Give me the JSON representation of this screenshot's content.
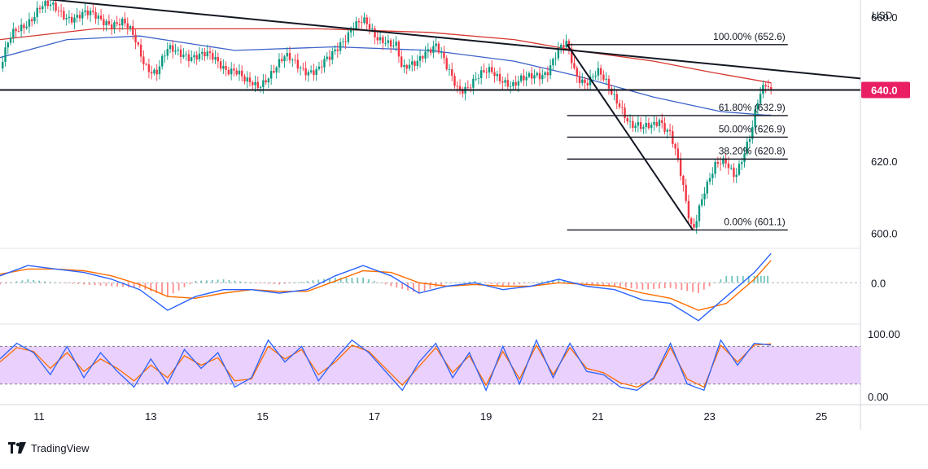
{
  "currency_label": "USD",
  "brand": "TradingView",
  "colors": {
    "price_up": "#089981",
    "price_down": "#f23645",
    "ma_red": "#d6362f",
    "ma_blue": "#3d64c9",
    "macd_line": "#2962ff",
    "signal_line": "#ff6d00",
    "stoch_k": "#2962ff",
    "stoch_d": "#ff6d00",
    "stoch_band": "#e6c8fb",
    "marker": "#e91e63",
    "axis_text": "#131722"
  },
  "chart_data": [
    {
      "type": "line",
      "title": "",
      "yaxis_ticks": [
        "600.0",
        "620.0",
        "640.0",
        "660.0"
      ],
      "ylim": [
        596,
        665
      ],
      "x_tick_labels": [
        "11",
        "13",
        "15",
        "17",
        "19",
        "21",
        "23",
        "25"
      ],
      "x_ticks": [
        11,
        13,
        15,
        17,
        19,
        21,
        23,
        25
      ],
      "xlim": [
        10.3,
        25.7
      ],
      "price_marker": {
        "value": 640.0,
        "label": "640.0"
      },
      "price_path": [
        [
          10.3,
          646
        ],
        [
          10.5,
          654
        ],
        [
          10.8,
          660
        ],
        [
          11.0,
          663
        ],
        [
          11.3,
          662
        ],
        [
          11.6,
          661
        ],
        [
          11.9,
          660
        ],
        [
          12.2,
          660
        ],
        [
          12.5,
          658
        ],
        [
          12.7,
          654
        ],
        [
          12.9,
          648
        ],
        [
          13.1,
          645
        ],
        [
          13.3,
          650
        ],
        [
          13.6,
          651
        ],
        [
          13.9,
          649
        ],
        [
          14.2,
          648
        ],
        [
          14.5,
          646
        ],
        [
          14.7,
          641
        ],
        [
          14.9,
          641
        ],
        [
          15.1,
          645
        ],
        [
          15.4,
          648
        ],
        [
          15.7,
          647
        ],
        [
          16.0,
          645
        ],
        [
          16.2,
          648
        ],
        [
          16.4,
          654
        ],
        [
          16.6,
          658
        ],
        [
          16.8,
          658
        ],
        [
          17.0,
          655
        ],
        [
          17.2,
          655
        ],
        [
          17.4,
          652
        ],
        [
          17.5,
          644
        ],
        [
          17.7,
          647
        ],
        [
          17.9,
          652
        ],
        [
          18.1,
          652
        ],
        [
          18.3,
          645
        ],
        [
          18.5,
          641
        ],
        [
          18.7,
          642
        ],
        [
          18.9,
          643
        ],
        [
          19.1,
          645
        ],
        [
          19.3,
          644
        ],
        [
          19.5,
          641
        ],
        [
          19.7,
          642
        ],
        [
          19.9,
          645
        ],
        [
          20.1,
          646
        ],
        [
          20.3,
          650
        ],
        [
          20.45,
          652
        ],
        [
          20.6,
          645
        ],
        [
          20.8,
          643
        ],
        [
          21.0,
          644
        ],
        [
          21.2,
          640
        ],
        [
          21.4,
          637
        ],
        [
          21.6,
          630
        ],
        [
          21.8,
          628
        ],
        [
          22.0,
          631
        ],
        [
          22.1,
          633
        ],
        [
          22.3,
          628
        ],
        [
          22.45,
          618
        ],
        [
          22.6,
          606
        ],
        [
          22.7,
          601
        ],
        [
          22.8,
          608
        ],
        [
          22.9,
          613
        ],
        [
          23.1,
          618
        ],
        [
          23.3,
          619
        ],
        [
          23.45,
          617
        ],
        [
          23.6,
          623
        ],
        [
          23.75,
          628
        ],
        [
          23.85,
          635
        ],
        [
          24.0,
          641
        ],
        [
          24.1,
          640
        ]
      ],
      "series": [
        {
          "name": "",
          "x": [
            10.3,
            11.5,
            12.8,
            14.5,
            16.3,
            18.0,
            19.5,
            20.6,
            22.0,
            23.2,
            24.0,
            24.1
          ],
          "values": [
            649,
            654,
            655,
            651,
            652,
            651,
            648,
            644,
            638,
            634,
            633,
            633
          ]
        },
        {
          "name": "",
          "x": [
            10.3,
            12.0,
            14.0,
            16.0,
            18.0,
            19.5,
            20.6,
            22.0,
            23.0,
            24.1
          ],
          "values": [
            654,
            657,
            657,
            657,
            656,
            654,
            651,
            648,
            645,
            642
          ]
        }
      ],
      "trendlines": [
        {
          "x": [
            10.3,
            25.7
          ],
          "y": [
            666.5,
            643.2
          ]
        },
        {
          "x": [
            20.45,
            22.7
          ],
          "y": [
            652.6,
            601.1
          ]
        },
        {
          "x": [
            10.3,
            25.7
          ],
          "y": [
            640,
            640
          ]
        }
      ],
      "fibonacci": {
        "x_start": 20.45,
        "x_end": 24.4,
        "levels": [
          {
            "label": "100.00% (652.6)",
            "value": 652.6
          },
          {
            "label": "61.80% (632.9)",
            "value": 632.9
          },
          {
            "label": "50.00% (626.9)",
            "value": 626.9
          },
          {
            "label": "38.20% (620.8)",
            "value": 620.8
          },
          {
            "label": "0.00% (601.1)",
            "value": 601.1
          }
        ]
      }
    },
    {
      "type": "line",
      "title": "",
      "yaxis_ticks": [
        "0.0"
      ],
      "ylim": [
        -1.2,
        1.0
      ],
      "x": [
        10.3,
        10.8,
        11.3,
        11.8,
        12.3,
        12.8,
        13.3,
        13.8,
        14.3,
        14.8,
        15.3,
        15.8,
        16.3,
        16.8,
        17.3,
        17.8,
        18.3,
        18.8,
        19.3,
        19.8,
        20.3,
        20.8,
        21.3,
        21.8,
        22.3,
        22.8,
        23.3,
        23.8,
        24.1
      ],
      "series": [
        {
          "name": "",
          "values": [
            0.2,
            0.5,
            0.4,
            0.3,
            0.1,
            -0.2,
            -0.8,
            -0.4,
            -0.2,
            -0.2,
            -0.3,
            -0.2,
            0.2,
            0.5,
            0.2,
            -0.3,
            -0.1,
            0.0,
            -0.2,
            -0.1,
            0.1,
            -0.1,
            -0.2,
            -0.5,
            -0.6,
            -1.1,
            -0.4,
            0.3,
            0.85
          ]
        },
        {
          "name": "",
          "values": [
            0.25,
            0.4,
            0.4,
            0.35,
            0.2,
            -0.05,
            -0.4,
            -0.45,
            -0.3,
            -0.2,
            -0.25,
            -0.25,
            0.05,
            0.35,
            0.3,
            0.0,
            -0.1,
            -0.05,
            -0.1,
            -0.1,
            0.0,
            -0.05,
            -0.1,
            -0.3,
            -0.45,
            -0.8,
            -0.6,
            0.1,
            0.65
          ]
        }
      ]
    },
    {
      "type": "line",
      "title": "",
      "yaxis_ticks": [
        "0.00",
        "100.00"
      ],
      "ylim": [
        0,
        100
      ],
      "band": [
        20,
        80
      ],
      "x": [
        10.3,
        10.6,
        10.9,
        11.2,
        11.5,
        11.8,
        12.1,
        12.4,
        12.7,
        13.0,
        13.3,
        13.6,
        13.9,
        14.2,
        14.5,
        14.8,
        15.1,
        15.4,
        15.7,
        16.0,
        16.3,
        16.6,
        16.9,
        17.2,
        17.5,
        17.8,
        18.1,
        18.4,
        18.7,
        19.0,
        19.3,
        19.6,
        19.9,
        20.2,
        20.5,
        20.8,
        21.1,
        21.4,
        21.7,
        22.0,
        22.3,
        22.6,
        22.9,
        23.2,
        23.5,
        23.8,
        24.1
      ],
      "series": [
        {
          "name": "",
          "values": [
            60,
            85,
            70,
            35,
            80,
            30,
            70,
            40,
            15,
            60,
            20,
            75,
            45,
            70,
            15,
            30,
            90,
            55,
            80,
            25,
            60,
            90,
            70,
            40,
            10,
            55,
            85,
            30,
            70,
            10,
            80,
            20,
            90,
            30,
            85,
            40,
            35,
            15,
            10,
            30,
            85,
            20,
            10,
            90,
            50,
            85,
            82
          ]
        },
        {
          "name": "",
          "values": [
            55,
            78,
            72,
            45,
            70,
            40,
            60,
            45,
            25,
            50,
            30,
            65,
            50,
            62,
            25,
            28,
            80,
            60,
            75,
            35,
            55,
            82,
            72,
            45,
            18,
            48,
            78,
            38,
            65,
            18,
            72,
            28,
            82,
            35,
            78,
            45,
            38,
            22,
            15,
            28,
            78,
            28,
            15,
            82,
            55,
            82,
            84
          ]
        }
      ]
    }
  ]
}
